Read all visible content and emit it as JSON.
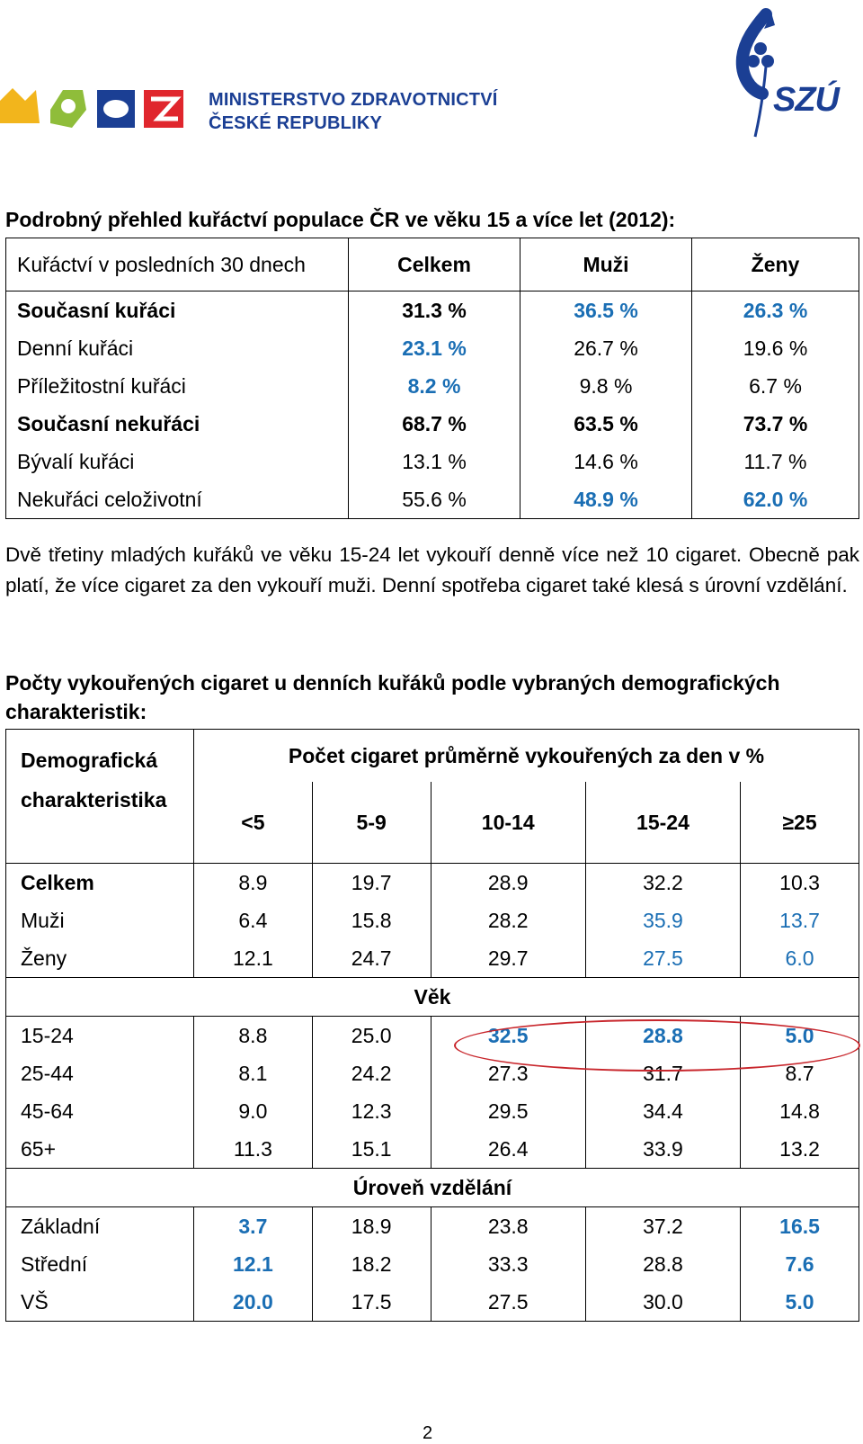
{
  "header": {
    "ministry_line1": "MINISTERSTVO ZDRAVOTNICTVÍ",
    "ministry_line2": "ČESKÉ REPUBLIKY",
    "szu_logo_text": "SZÚ",
    "colors": {
      "ministry_blue": "#1b3f94",
      "logo_yellow": "#f2b51c",
      "logo_green": "#8fbd3a",
      "logo_red": "#e0262d",
      "highlight_blue": "#1a6eb4",
      "oval_red": "#c8262c"
    }
  },
  "section1": {
    "title": "Podrobný přehled kuřáctví populace ČR ve věku 15 a více let (2012):",
    "columns": [
      "Kuřáctví v posledních 30 dnech",
      "Celkem",
      "Muži",
      "Ženy"
    ],
    "rows": [
      {
        "label": "Současní kuřáci",
        "bold": true,
        "values": [
          "31.3 %",
          "36.5 %",
          "26.3 %"
        ],
        "blue": [
          false,
          true,
          true
        ]
      },
      {
        "label": "Denní kuřáci",
        "bold": false,
        "values": [
          "23.1 %",
          "26.7 %",
          "19.6 %"
        ],
        "blue": [
          true,
          false,
          false
        ]
      },
      {
        "label": "Příležitostní kuřáci",
        "bold": false,
        "values": [
          "8.2 %",
          "9.8 %",
          "6.7 %"
        ],
        "blue": [
          true,
          false,
          false
        ]
      },
      {
        "label": "Současní nekuřáci",
        "bold": true,
        "values": [
          "68.7 %",
          "63.5 %",
          "73.7 %"
        ],
        "blue": [
          false,
          false,
          false
        ]
      },
      {
        "label": "Bývalí kuřáci",
        "bold": false,
        "values": [
          "13.1 %",
          "14.6 %",
          "11.7 %"
        ],
        "blue": [
          false,
          false,
          false
        ]
      },
      {
        "label": "Nekuřáci celoživotní",
        "bold": false,
        "values": [
          "55.6 %",
          "48.9 %",
          "62.0 %"
        ],
        "blue": [
          false,
          true,
          true
        ]
      }
    ]
  },
  "paragraph": "Dvě třetiny mladých kuřáků ve věku 15-24 let vykouří denně více než 10 cigaret. Obecně pak platí, že více cigaret za den vykouří muži. Denní spotřeba cigaret také klesá s úrovní vzdělání.",
  "section2": {
    "title": "Počty vykouřených cigaret u denních kuřáků podle vybraných demografických charakteristik:",
    "label_header_1": "Demografická",
    "label_header_2": "charakteristika",
    "group_header": "Počet cigaret průměrně vykouřených za den v %",
    "columns": [
      "<5",
      "5-9",
      "10-14",
      "15-24",
      "≥25"
    ],
    "groups": [
      {
        "title": "",
        "rows": [
          {
            "label": "Celkem",
            "values": [
              "8.9",
              "19.7",
              "28.9",
              "32.2",
              "10.3"
            ],
            "style": [
              "",
              "",
              "",
              "",
              ""
            ]
          },
          {
            "label": "Muži",
            "values": [
              "6.4",
              "15.8",
              "28.2",
              "35.9",
              "13.7"
            ],
            "style": [
              "",
              "",
              "",
              "blue",
              "blue"
            ]
          },
          {
            "label": "Ženy",
            "values": [
              "12.1",
              "24.7",
              "29.7",
              "27.5",
              "6.0"
            ],
            "style": [
              "",
              "",
              "",
              "blue",
              "blue"
            ]
          }
        ]
      },
      {
        "title": "Věk",
        "rows": [
          {
            "label": "15-24",
            "values": [
              "8.8",
              "25.0",
              "32.5",
              "28.8",
              "5.0"
            ],
            "style": [
              "",
              "",
              "bluebold",
              "bluebold",
              "bluebold"
            ]
          },
          {
            "label": "25-44",
            "values": [
              "8.1",
              "24.2",
              "27.3",
              "31.7",
              "8.7"
            ],
            "style": [
              "",
              "",
              "",
              "",
              ""
            ]
          },
          {
            "label": "45-64",
            "values": [
              "9.0",
              "12.3",
              "29.5",
              "34.4",
              "14.8"
            ],
            "style": [
              "",
              "",
              "",
              "",
              ""
            ]
          },
          {
            "label": "65+",
            "values": [
              "11.3",
              "15.1",
              "26.4",
              "33.9",
              "13.2"
            ],
            "style": [
              "",
              "",
              "",
              "",
              ""
            ]
          }
        ]
      },
      {
        "title": "Úroveň vzdělání",
        "rows": [
          {
            "label": "Základní",
            "values": [
              "3.7",
              "18.9",
              "23.8",
              "37.2",
              "16.5"
            ],
            "style": [
              "bluebold",
              "",
              "",
              "",
              "bluebold"
            ]
          },
          {
            "label": "Střední",
            "values": [
              "12.1",
              "18.2",
              "33.3",
              "28.8",
              "7.6"
            ],
            "style": [
              "bluebold",
              "",
              "",
              "",
              "bluebold"
            ]
          },
          {
            "label": "VŠ",
            "values": [
              "20.0",
              "17.5",
              "27.5",
              "30.0",
              "5.0"
            ],
            "style": [
              "bluebold",
              "",
              "",
              "",
              "bluebold"
            ]
          }
        ]
      }
    ]
  },
  "page_number": "2"
}
